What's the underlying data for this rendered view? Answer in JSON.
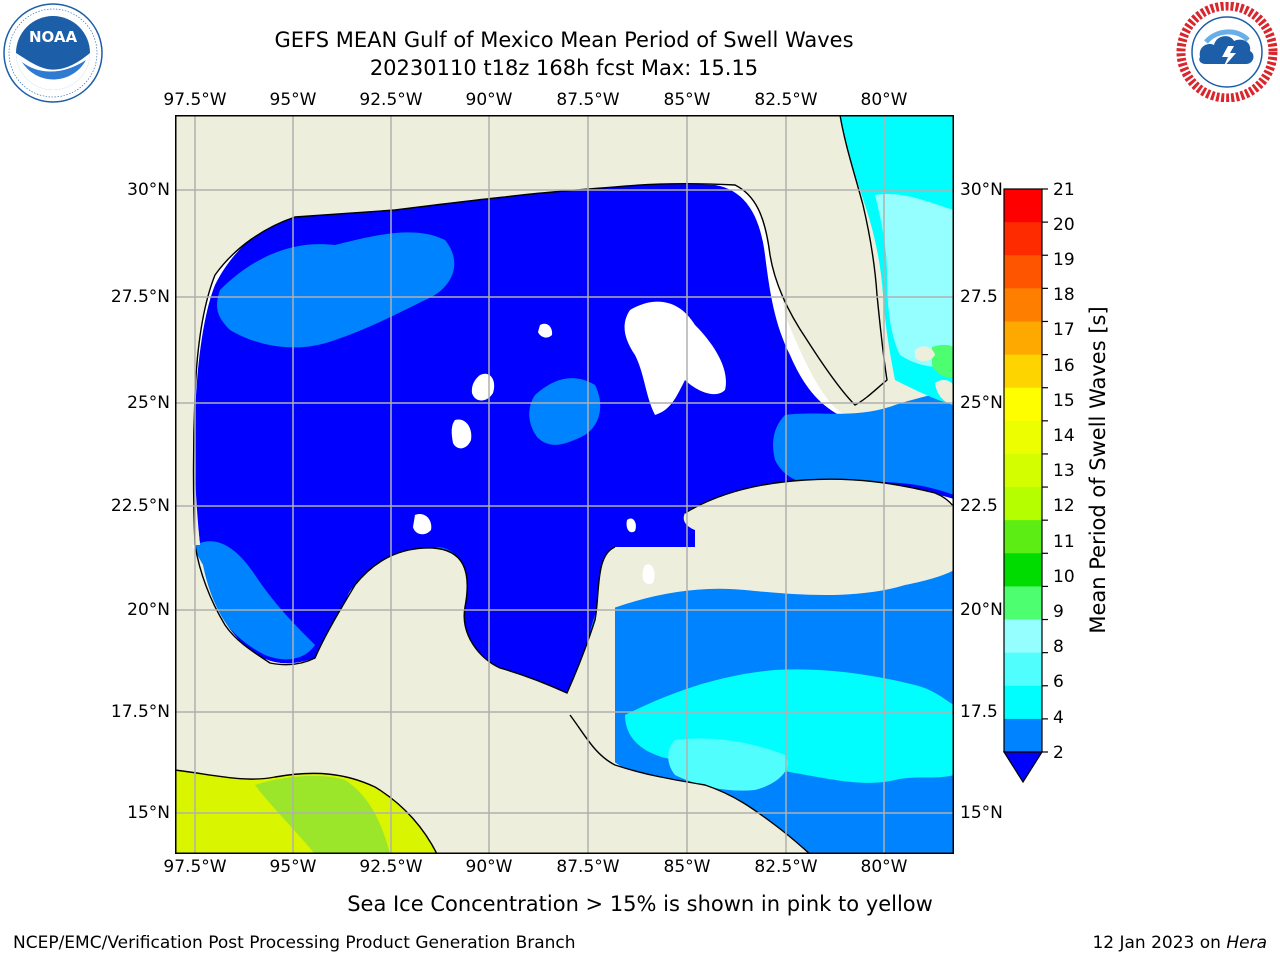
{
  "header": {
    "title_line1": "GEFS MEAN Gulf of Mexico Mean Period of Swell Waves",
    "title_line2": "20230110 t18z 168h fcst   Max: 15.15"
  },
  "logos": {
    "left": {
      "name": "NOAA",
      "ring_text": "NATIONAL OCEANIC AND ATMOSPHERIC ADMINISTRATION · U.S. DEPARTMENT OF COMMERCE",
      "color": "#1c5ea8"
    },
    "right": {
      "name": "NATIONAL WEATHER SERVICE",
      "color": "#d8262c"
    }
  },
  "map": {
    "lon_ticks": [
      "97.5°W",
      "95°W",
      "92.5°W",
      "90°W",
      "87.5°W",
      "85°W",
      "82.5°W",
      "80°W"
    ],
    "lat_ticks_left": [
      "30°N",
      "27.5°N",
      "25°N",
      "22.5°N",
      "20°N",
      "17.5°N",
      "15°N"
    ],
    "lat_ticks_right": [
      "30°N",
      "27.5",
      "25°N",
      "22.5",
      "20°N",
      "17.5",
      "15°N"
    ],
    "land_color": "#eeeedc",
    "grid_color": "#b0b0b0"
  },
  "colorbar": {
    "label": "Mean Period of Swell Waves [s]",
    "ticks": [
      "21",
      "20",
      "19",
      "18",
      "17",
      "16",
      "15",
      "14",
      "13",
      "12",
      "11",
      "10",
      "9",
      "8",
      "6",
      "4",
      "2"
    ],
    "colors": [
      "#fe0000",
      "#fe2a00",
      "#fe5500",
      "#fe7f00",
      "#fea900",
      "#fed400",
      "#fefe00",
      "#ecfe00",
      "#d3fe00",
      "#b4fe00",
      "#5bed14",
      "#00db00",
      "#4efe71",
      "#95fefe",
      "#50fefe",
      "#00fefe",
      "#0083fe"
    ],
    "under_color": "#0000fe"
  },
  "caption": "Sea Ice Concentration > 15% is shown in pink to yellow",
  "footer": {
    "left": "NCEP/EMC/Verification Post Processing Product Generation Branch",
    "date": "12 Jan 2023 on ",
    "host": "Hera"
  }
}
